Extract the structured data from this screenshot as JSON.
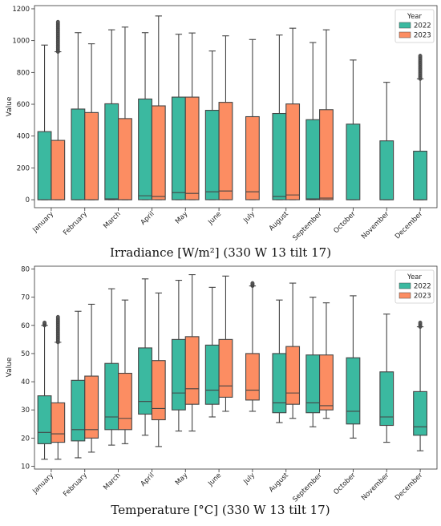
{
  "chart_data": [
    {
      "type": "boxplot",
      "caption": "Irradiance [W/m²] (330 W 13 tilt 17)",
      "ylabel": "Value",
      "ylim": [
        -50,
        1220
      ],
      "yticks": [
        0,
        200,
        400,
        600,
        800,
        1000,
        1200
      ],
      "categories": [
        "January",
        "February",
        "March",
        "April",
        "May",
        "June",
        "July",
        "August",
        "September",
        "October",
        "November",
        "December"
      ],
      "legend": {
        "title": "Year",
        "position": "top-right"
      },
      "series": [
        {
          "name": "2022",
          "color": "#3bb9a0",
          "boxes": [
            {
              "lw": 0,
              "q1": 0,
              "med": 0,
              "q3": 428,
              "uw": 972,
              "outliers_max": null
            },
            {
              "lw": 0,
              "q1": 0,
              "med": 0,
              "q3": 570,
              "uw": 1050,
              "outliers_max": null
            },
            {
              "lw": 0,
              "q1": 0,
              "med": 5,
              "q3": 603,
              "uw": 1068,
              "outliers_max": null
            },
            {
              "lw": 0,
              "q1": 0,
              "med": 25,
              "q3": 633,
              "uw": 1050,
              "outliers_max": null
            },
            {
              "lw": 0,
              "q1": 0,
              "med": 45,
              "q3": 645,
              "uw": 1040,
              "outliers_max": null
            },
            {
              "lw": 0,
              "q1": 0,
              "med": 50,
              "q3": 562,
              "uw": 935,
              "outliers_max": null
            },
            null,
            {
              "lw": 0,
              "q1": 0,
              "med": 20,
              "q3": 542,
              "uw": 1035,
              "outliers_max": null
            },
            {
              "lw": 0,
              "q1": 0,
              "med": 5,
              "q3": 503,
              "uw": 988,
              "outliers_max": null
            },
            {
              "lw": 0,
              "q1": 0,
              "med": 0,
              "q3": 475,
              "uw": 878,
              "outliers_max": null
            },
            {
              "lw": 0,
              "q1": 0,
              "med": 0,
              "q3": 370,
              "uw": 738,
              "outliers_max": null
            },
            {
              "lw": 0,
              "q1": 0,
              "med": 0,
              "q3": 305,
              "uw": 760,
              "outliers_max": 905
            }
          ]
        },
        {
          "name": "2023",
          "color": "#fc8d62",
          "boxes": [
            {
              "lw": 0,
              "q1": 0,
              "med": 0,
              "q3": 373,
              "uw": 930,
              "outliers_max": 1118
            },
            {
              "lw": 0,
              "q1": 0,
              "med": 0,
              "q3": 548,
              "uw": 980,
              "outliers_max": null
            },
            {
              "lw": 0,
              "q1": 0,
              "med": 0,
              "q3": 510,
              "uw": 1085,
              "outliers_max": null
            },
            {
              "lw": 0,
              "q1": 0,
              "med": 20,
              "q3": 590,
              "uw": 1155,
              "outliers_max": null
            },
            {
              "lw": 0,
              "q1": 0,
              "med": 40,
              "q3": 645,
              "uw": 1048,
              "outliers_max": null
            },
            {
              "lw": 0,
              "q1": 0,
              "med": 55,
              "q3": 612,
              "uw": 1030,
              "outliers_max": null
            },
            {
              "lw": 0,
              "q1": 0,
              "med": 50,
              "q3": 522,
              "uw": 1007,
              "outliers_max": null
            },
            {
              "lw": 0,
              "q1": 0,
              "med": 30,
              "q3": 602,
              "uw": 1078,
              "outliers_max": null
            },
            {
              "lw": 0,
              "q1": 0,
              "med": 10,
              "q3": 566,
              "uw": 1068,
              "outliers_max": null
            },
            null,
            null,
            null
          ]
        }
      ]
    },
    {
      "type": "boxplot",
      "caption": "Temperature [°C] (330 W 13 tilt 17)",
      "ylabel": "Value",
      "ylim": [
        9,
        81
      ],
      "yticks": [
        10,
        20,
        30,
        40,
        50,
        60,
        70,
        80
      ],
      "categories": [
        "January",
        "February",
        "March",
        "April",
        "May",
        "June",
        "July",
        "August",
        "September",
        "October",
        "November",
        "December"
      ],
      "legend": {
        "title": "Year",
        "position": "top-right"
      },
      "series": [
        {
          "name": "2022",
          "color": "#3bb9a0",
          "boxes": [
            {
              "lw": 12.5,
              "q1": 18,
              "med": 22,
              "q3": 35,
              "uw": 60,
              "outliers_max": 61
            },
            {
              "lw": 13,
              "q1": 19,
              "med": 23,
              "q3": 40.5,
              "uw": 65,
              "outliers_max": null
            },
            {
              "lw": 17.5,
              "q1": 23,
              "med": 27.5,
              "q3": 46.5,
              "uw": 73,
              "outliers_max": null
            },
            {
              "lw": 21,
              "q1": 28.5,
              "med": 33,
              "q3": 52,
              "uw": 76.5,
              "outliers_max": null
            },
            {
              "lw": 22.5,
              "q1": 30,
              "med": 36,
              "q3": 55,
              "uw": 76,
              "outliers_max": null
            },
            {
              "lw": 27.5,
              "q1": 32,
              "med": 37,
              "q3": 53,
              "uw": 73.5,
              "outliers_max": null
            },
            null,
            {
              "lw": 25.5,
              "q1": 29,
              "med": 32.5,
              "q3": 50,
              "uw": 69,
              "outliers_max": null
            },
            {
              "lw": 24,
              "q1": 29,
              "med": 32.5,
              "q3": 49.5,
              "uw": 70,
              "outliers_max": null
            },
            {
              "lw": 20,
              "q1": 25,
              "med": 29.5,
              "q3": 48.5,
              "uw": 70.5,
              "outliers_max": null
            },
            {
              "lw": 18.5,
              "q1": 24.5,
              "med": 27.5,
              "q3": 43.5,
              "uw": 64,
              "outliers_max": null
            },
            {
              "lw": 15.5,
              "q1": 21,
              "med": 24,
              "q3": 36.5,
              "uw": 59.5,
              "outliers_max": 61
            }
          ]
        },
        {
          "name": "2023",
          "color": "#fc8d62",
          "boxes": [
            {
              "lw": 12.5,
              "q1": 18.5,
              "med": 21.5,
              "q3": 32.5,
              "uw": 54,
              "outliers_max": 63
            },
            {
              "lw": 15,
              "q1": 20,
              "med": 23,
              "q3": 42,
              "uw": 67.5,
              "outliers_max": null
            },
            {
              "lw": 18,
              "q1": 23,
              "med": 27,
              "q3": 43,
              "uw": 69,
              "outliers_max": null
            },
            {
              "lw": 17,
              "q1": 26.5,
              "med": 30.5,
              "q3": 47.5,
              "uw": 71.5,
              "outliers_max": null
            },
            {
              "lw": 22.5,
              "q1": 32,
              "med": 37.5,
              "q3": 56,
              "uw": 78,
              "outliers_max": null
            },
            {
              "lw": 29.5,
              "q1": 34.5,
              "med": 38.5,
              "q3": 55,
              "uw": 77.5,
              "outliers_max": null
            },
            {
              "lw": 29.5,
              "q1": 33.5,
              "med": 37,
              "q3": 50,
              "uw": 74,
              "outliers_max": 75
            },
            {
              "lw": 27,
              "q1": 32,
              "med": 36,
              "q3": 52.5,
              "uw": 75,
              "outliers_max": null
            },
            {
              "lw": 27,
              "q1": 30,
              "med": 31.5,
              "q3": 49.5,
              "uw": 68,
              "outliers_max": null
            },
            null,
            null,
            null
          ]
        }
      ]
    }
  ]
}
